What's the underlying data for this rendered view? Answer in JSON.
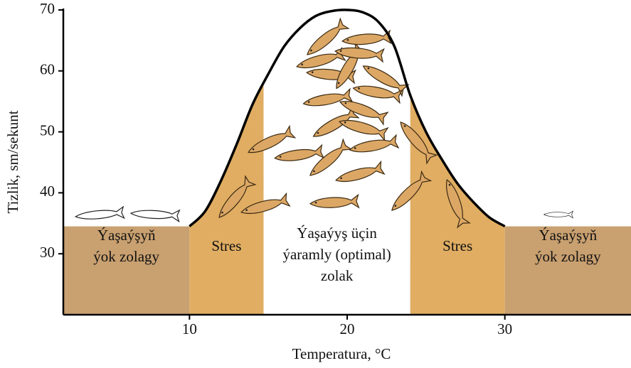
{
  "chart_data": {
    "type": "line",
    "xlabel": "Temperatura, °C",
    "ylabel": "Tizlik, sm/sekunt",
    "x": [
      10,
      11,
      12,
      13,
      14,
      15,
      16,
      17,
      18,
      19,
      20,
      21,
      22,
      23,
      24,
      25,
      26,
      27,
      28,
      29,
      30
    ],
    "values": [
      34.5,
      37,
      42,
      48,
      54.5,
      59.5,
      64,
      67,
      69,
      69.8,
      70,
      69.6,
      68,
      64,
      56,
      50,
      45.5,
      41.5,
      38.5,
      36,
      34.5
    ],
    "color": "#000000",
    "xlim": [
      2,
      38
    ],
    "ylim": [
      20,
      70
    ],
    "xticks": [
      10,
      20,
      30
    ],
    "yticks": [
      30,
      40,
      50,
      60,
      70
    ],
    "zones": [
      {
        "lines": [
          "Ýaşaýşyň",
          "ýok zolagy"
        ],
        "from": 2,
        "to": 10,
        "color": "#c9a070"
      },
      {
        "lines": [
          "Stres"
        ],
        "from": 10,
        "to": 14.7,
        "color": "#e0ad62"
      },
      {
        "lines": [
          "Ýaşaýyş üçin",
          "ýaramly (optimal)",
          "zolak"
        ],
        "from": 14.7,
        "to": 24,
        "color": "#ffffff"
      },
      {
        "lines": [
          "Stres"
        ],
        "from": 24,
        "to": 30,
        "color": "#e0ad62"
      },
      {
        "lines": [
          "Ýaşaýşyň",
          "ýok zolagy"
        ],
        "from": 30,
        "to": 38,
        "color": "#c9a070"
      }
    ]
  }
}
